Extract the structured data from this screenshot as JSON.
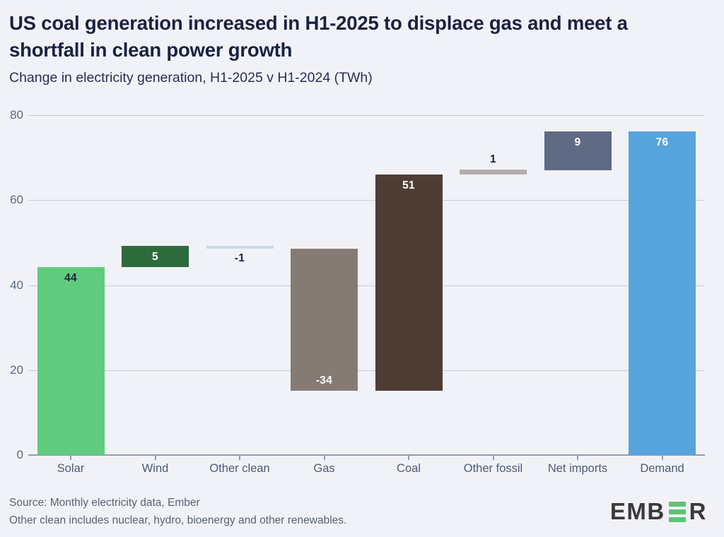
{
  "header": {
    "title": "US coal generation increased in H1-2025 to displace gas and meet a shortfall in clean power growth",
    "title_lines": [
      "US coal generation increased in H1-2025 to displace gas and meet a",
      "shortfall in clean power growth"
    ],
    "subtitle": "Change in electricity generation, H1-2025 v H1-2024 (TWh)"
  },
  "chart_data": {
    "type": "bar",
    "variant": "waterfall",
    "title": "US coal generation increased in H1-2025 to displace gas and meet a shortfall in clean power growth",
    "subtitle": "Change in electricity generation, H1-2025 v H1-2024 (TWh)",
    "unit": "TWh",
    "categories": [
      "Solar",
      "Wind",
      "Other clean",
      "Gas",
      "Coal",
      "Other fossil",
      "Net imports",
      "Demand"
    ],
    "values": [
      44,
      5,
      -1,
      -34,
      51,
      1,
      9,
      76
    ],
    "value_labels": [
      "44",
      "5",
      "-1",
      "-34",
      "51",
      "1",
      "9",
      "76"
    ],
    "bar_spans": [
      [
        0,
        44.3
      ],
      [
        44.3,
        49.3
      ],
      [
        48.6,
        49.3
      ],
      [
        15.1,
        48.6
      ],
      [
        15.1,
        66
      ],
      [
        66,
        67.2
      ],
      [
        67,
        76.2
      ],
      [
        0,
        76.2
      ]
    ],
    "bar_colors": [
      "#5fcb7e",
      "#2d6b3d",
      "#c5d9ea",
      "#867b74",
      "#4e3d34",
      "#b5afab",
      "#5f6a84",
      "#57a4dc"
    ],
    "label_placements": [
      "inside-top",
      "inside-top",
      "below",
      "inside-bottom",
      "inside-top",
      "above",
      "inside-top",
      "inside-top"
    ],
    "label_colors": [
      "#1b2142",
      "#ffffff",
      "#1b2142",
      "#ffffff",
      "#ffffff",
      "#1b2142",
      "#ffffff",
      "#ffffff"
    ],
    "ylim": [
      0,
      80
    ],
    "yticks": [
      0,
      20,
      40,
      60,
      80
    ],
    "grid": "horizontal",
    "legend": "none",
    "xlabel": "",
    "ylabel": ""
  },
  "footer": {
    "source": "Source: Monthly electricity data, Ember",
    "note": "Other clean includes nuclear, hydro, bioenergy and other renewables.",
    "logo_prefix": "EMB",
    "logo_suffix": "R"
  },
  "colors": {
    "background": "#f1f2f7",
    "title_text": "#1b2142",
    "axis_text": "#5d6782",
    "gridline": "#c7cad8",
    "zero_line": "#949bad",
    "footer_text": "#596178",
    "logo_green": "#5ec473",
    "logo_dark": "#3a3a3a"
  }
}
